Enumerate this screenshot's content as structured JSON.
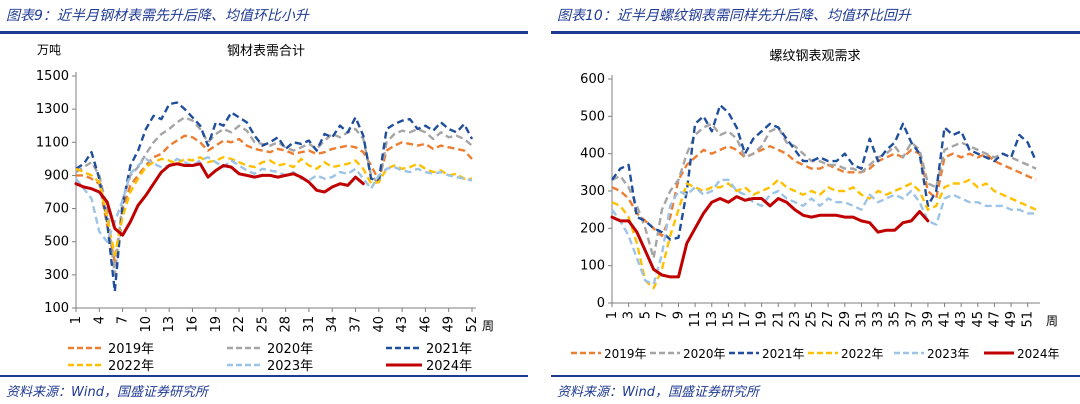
{
  "left": {
    "figure_title": "图表9：近半月钢材表需先升后降、均值环比小升",
    "source": "资料来源：Wind，国盛证券研究所",
    "chart_data": {
      "type": "line",
      "title": "钢材表需合计",
      "unit_label": "万吨",
      "xlabel": "周",
      "ylim": [
        100,
        1500
      ],
      "yticks": [
        100,
        300,
        500,
        700,
        900,
        1100,
        1300,
        1500
      ],
      "xticks": [
        1,
        4,
        7,
        10,
        13,
        16,
        19,
        22,
        25,
        28,
        31,
        34,
        37,
        40,
        43,
        46,
        49,
        52
      ],
      "x_range": [
        1,
        52
      ],
      "series": [
        {
          "name": "2019年",
          "color": "#ed7d31",
          "style": "dash",
          "x_start": 1,
          "values": [
            900,
            900,
            880,
            850,
            600,
            380,
            700,
            840,
            900,
            960,
            1010,
            1030,
            1080,
            1110,
            1140,
            1130,
            1100,
            1050,
            1080,
            1110,
            1100,
            1120,
            1080,
            1060,
            1050,
            1040,
            1060,
            1050,
            1030,
            1040,
            1050,
            1030,
            1040,
            1060,
            1070,
            1080,
            1070,
            1040,
            960,
            870,
            1050,
            1080,
            1100,
            1090,
            1080,
            1090,
            1060,
            1080,
            1070,
            1060,
            1050,
            1000
          ]
        },
        {
          "name": "2020年",
          "color": "#a5a5a5",
          "style": "dash",
          "x_start": 1,
          "values": [
            920,
            950,
            980,
            900,
            700,
            300,
            750,
            900,
            950,
            1030,
            1100,
            1150,
            1180,
            1220,
            1250,
            1230,
            1180,
            1100,
            1150,
            1180,
            1160,
            1200,
            1170,
            1100,
            1090,
            1080,
            1100,
            1070,
            1050,
            1070,
            1090,
            1060,
            1110,
            1150,
            1130,
            1160,
            1180,
            1120,
            900,
            850,
            1100,
            1150,
            1170,
            1160,
            1180,
            1160,
            1120,
            1160,
            1130,
            1140,
            1120,
            1080
          ]
        },
        {
          "name": "2021年",
          "color": "#1f4e9c",
          "style": "dash",
          "x_start": 1,
          "values": [
            940,
            970,
            1040,
            880,
            620,
            200,
            720,
            960,
            1050,
            1180,
            1260,
            1240,
            1330,
            1340,
            1300,
            1250,
            1200,
            1080,
            1220,
            1200,
            1280,
            1250,
            1220,
            1140,
            1080,
            1100,
            1130,
            1060,
            1100,
            1090,
            1110,
            1050,
            1150,
            1130,
            1200,
            1160,
            1250,
            1140,
            880,
            870,
            1180,
            1210,
            1230,
            1240,
            1180,
            1200,
            1170,
            1220,
            1180,
            1160,
            1210,
            1120
          ]
        },
        {
          "name": "2022年",
          "color": "#ffc000",
          "style": "dash",
          "x_start": 1,
          "values": [
            940,
            920,
            900,
            860,
            650,
            420,
            650,
            800,
            880,
            950,
            980,
            1000,
            990,
            970,
            1000,
            990,
            1010,
            980,
            990,
            1010,
            1000,
            980,
            960,
            950,
            980,
            990,
            960,
            970,
            950,
            1000,
            960,
            940,
            980,
            950,
            960,
            970,
            990,
            940,
            850,
            860,
            940,
            960,
            940,
            950,
            970,
            940,
            920,
            930,
            900,
            910,
            880,
            880
          ]
        },
        {
          "name": "2023年",
          "color": "#9dc3e6",
          "style": "dash",
          "x_start": 1,
          "values": [
            880,
            820,
            760,
            560,
            500,
            620,
            750,
            910,
            960,
            1000,
            970,
            950,
            960,
            1000,
            980,
            960,
            990,
            1010,
            980,
            950,
            990,
            960,
            930,
            910,
            940,
            930,
            920,
            900,
            920,
            880,
            870,
            900,
            880,
            890,
            920,
            910,
            940,
            880,
            820,
            900,
            940,
            950,
            930,
            920,
            940,
            920,
            910,
            920,
            900,
            890,
            880,
            870
          ]
        },
        {
          "name": "2024年",
          "color": "#c00000",
          "style": "solid",
          "x_start": 1,
          "values": [
            850,
            830,
            820,
            800,
            740,
            580,
            540,
            620,
            720,
            780,
            850,
            920,
            960,
            970,
            960,
            960,
            970,
            890,
            930,
            960,
            950,
            910,
            900,
            890,
            900,
            900,
            890,
            900,
            910,
            890,
            860,
            810,
            800,
            830,
            850,
            840,
            890,
            850
          ]
        }
      ]
    }
  },
  "right": {
    "figure_title": "图表10：近半月螺纹钢表需同样先升后降、均值环比回升",
    "source": "资料来源：Wind，国盛证券研究所",
    "chart_data": {
      "type": "line",
      "title": "螺纹钢表观需求",
      "xlabel": "周",
      "ylim": [
        0,
        600
      ],
      "yticks": [
        0,
        100,
        200,
        300,
        400,
        500,
        600
      ],
      "xticks": [
        1,
        3,
        5,
        7,
        9,
        11,
        13,
        15,
        17,
        19,
        21,
        23,
        25,
        27,
        29,
        31,
        33,
        35,
        37,
        39,
        41,
        43,
        45,
        47,
        49,
        51
      ],
      "x_range": [
        1,
        52
      ],
      "series": [
        {
          "name": "2019年",
          "color": "#ed7d31",
          "style": "dash",
          "x_start": 1,
          "values": [
            310,
            300,
            280,
            240,
            220,
            200,
            180,
            230,
            330,
            370,
            390,
            410,
            400,
            410,
            420,
            410,
            390,
            400,
            410,
            420,
            410,
            400,
            380,
            370,
            360,
            360,
            370,
            360,
            350,
            350,
            350,
            360,
            380,
            390,
            400,
            390,
            410,
            400,
            300,
            280,
            390,
            400,
            390,
            400,
            390,
            400,
            380,
            370,
            360,
            350,
            340,
            330
          ]
        },
        {
          "name": "2020年",
          "color": "#a5a5a5",
          "style": "dash",
          "x_start": 1,
          "values": [
            330,
            340,
            310,
            260,
            200,
            120,
            250,
            300,
            330,
            400,
            450,
            470,
            480,
            450,
            460,
            440,
            390,
            400,
            420,
            460,
            470,
            430,
            420,
            400,
            380,
            380,
            370,
            370,
            360,
            360,
            350,
            370,
            390,
            400,
            420,
            390,
            430,
            410,
            320,
            310,
            410,
            420,
            430,
            420,
            410,
            400,
            390,
            400,
            390,
            380,
            370,
            360
          ]
        },
        {
          "name": "2021年",
          "color": "#1f4e9c",
          "style": "dash",
          "x_start": 1,
          "values": [
            330,
            360,
            370,
            230,
            220,
            200,
            190,
            170,
            175,
            300,
            480,
            500,
            460,
            530,
            510,
            470,
            400,
            440,
            460,
            480,
            470,
            440,
            410,
            380,
            380,
            390,
            380,
            380,
            400,
            370,
            360,
            440,
            380,
            410,
            430,
            480,
            430,
            400,
            260,
            300,
            470,
            450,
            460,
            410,
            400,
            390,
            380,
            400,
            390,
            450,
            430,
            380
          ]
        },
        {
          "name": "2022年",
          "color": "#ffc000",
          "style": "dash",
          "x_start": 1,
          "values": [
            270,
            260,
            230,
            160,
            60,
            40,
            90,
            180,
            250,
            320,
            310,
            300,
            310,
            310,
            320,
            300,
            310,
            290,
            300,
            310,
            330,
            310,
            300,
            290,
            300,
            290,
            310,
            300,
            300,
            310,
            290,
            280,
            300,
            290,
            300,
            310,
            320,
            300,
            250,
            260,
            310,
            320,
            320,
            330,
            310,
            320,
            300,
            290,
            280,
            270,
            260,
            250
          ]
        },
        {
          "name": "2023年",
          "color": "#9dc3e6",
          "style": "dash",
          "x_start": 1,
          "values": [
            250,
            220,
            180,
            120,
            60,
            50,
            130,
            260,
            300,
            290,
            310,
            290,
            300,
            330,
            330,
            300,
            290,
            270,
            260,
            290,
            300,
            280,
            270,
            260,
            280,
            260,
            280,
            270,
            270,
            260,
            250,
            290,
            270,
            280,
            290,
            280,
            300,
            270,
            220,
            210,
            280,
            290,
            280,
            270,
            270,
            260,
            260,
            260,
            250,
            250,
            240,
            240
          ]
        },
        {
          "name": "2024年",
          "color": "#c00000",
          "style": "solid",
          "x_start": 1,
          "values": [
            230,
            220,
            220,
            190,
            140,
            90,
            75,
            70,
            70,
            160,
            200,
            240,
            270,
            280,
            270,
            285,
            275,
            280,
            280,
            260,
            280,
            270,
            250,
            235,
            230,
            235,
            235,
            235,
            230,
            230,
            220,
            215,
            190,
            195,
            195,
            215,
            220,
            245,
            220
          ]
        }
      ]
    }
  }
}
